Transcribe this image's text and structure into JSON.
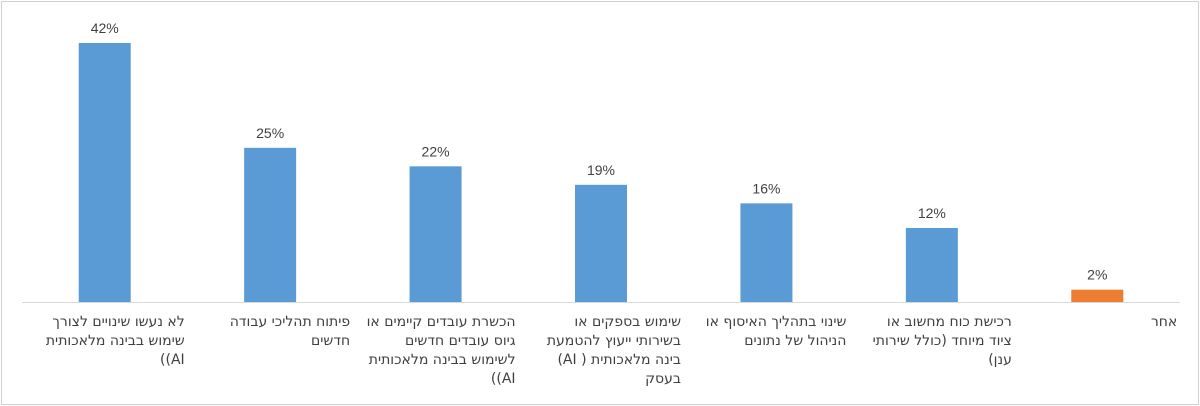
{
  "chart_data": {
    "type": "bar",
    "title": "",
    "xlabel": "",
    "ylabel": "",
    "ylim": [
      0,
      42
    ],
    "grid": false,
    "legend": "none",
    "categories": [
      "לא נעשו שינויים לצורך שימוש בבינה מלאכותית AI))",
      "פיתוח תהליכי עבודה חדשים",
      "הכשרת עובדים קיימים או גיוס עובדים חדשים לשימוש בבינה מלאכותית AI))",
      "שימוש בספקים או בשירותי ייעוץ להטמעת בינה מלאכותית ( AI) בעסק",
      "שינוי בתהליך האיסוף או הניהול של נתונים",
      "רכישת כוח מחשוב או ציוד מיוחד (כולל שירותי ענן)",
      "אחר"
    ],
    "values": [
      42,
      25,
      22,
      19,
      16,
      12,
      2
    ],
    "value_labels": [
      "42%",
      "25%",
      "22%",
      "19%",
      "16%",
      "12%",
      "2%"
    ],
    "colors": [
      "#5b9bd5",
      "#5b9bd5",
      "#5b9bd5",
      "#5b9bd5",
      "#5b9bd5",
      "#5b9bd5",
      "#ed7d31"
    ]
  }
}
